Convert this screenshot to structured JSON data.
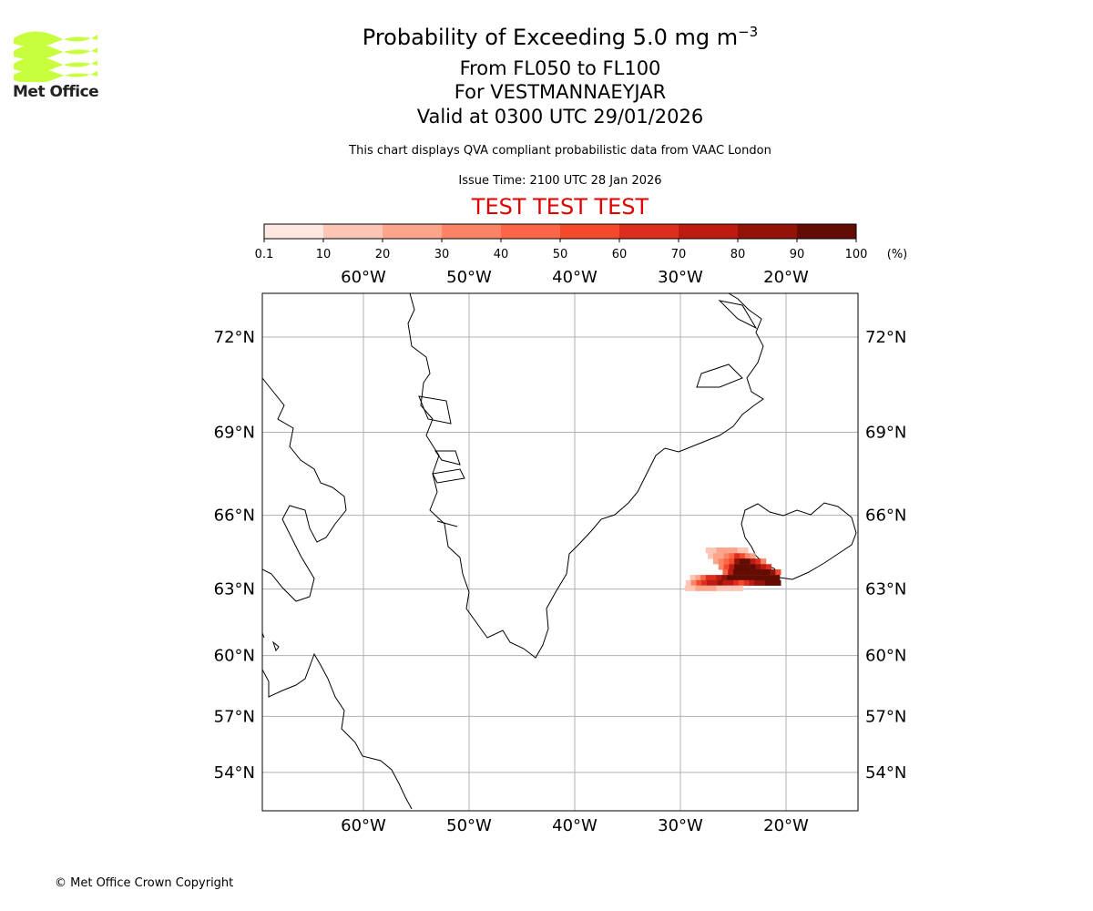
{
  "header": {
    "title": "Probability of Exceeding 5.0 mg m",
    "title_sup": "−3",
    "subtitle_levels": "From FL050 to FL100",
    "subtitle_location": "For VESTMANNAEYJAR",
    "subtitle_valid": "Valid at 0300 UTC 29/01/2026",
    "note": "This chart displays QVA compliant probabilistic data from VAAC London",
    "issue_time": "Issue Time: 2100 UTC 28 Jan 2026",
    "test_banner": "TEST TEST TEST"
  },
  "logo": {
    "text": "Met Office",
    "color": "#c8ff3c"
  },
  "footer": {
    "copyright": "© Met Office Crown Copyright"
  },
  "chart_data": {
    "type": "heatmap",
    "title": "Probability of Exceeding 5.0 mg m-3",
    "colorbar": {
      "ticks": [
        "0.1",
        "10",
        "20",
        "30",
        "40",
        "50",
        "60",
        "70",
        "80",
        "90",
        "100"
      ],
      "unit": "(%)",
      "colors": [
        "#fee8e0",
        "#fcc5b5",
        "#fca58b",
        "#fc8466",
        "#fb6648",
        "#f34a2c",
        "#dc2d1d",
        "#bd1b12",
        "#941309",
        "#620c03"
      ]
    },
    "x_ticks": [
      {
        "lon": -60,
        "label": "60°W"
      },
      {
        "lon": -50,
        "label": "50°W"
      },
      {
        "lon": -40,
        "label": "40°W"
      },
      {
        "lon": -30,
        "label": "30°W"
      },
      {
        "lon": -20,
        "label": "20°W"
      }
    ],
    "y_ticks": [
      {
        "lat": 72,
        "label": "72°N"
      },
      {
        "lat": 69,
        "label": "69°N"
      },
      {
        "lat": 66,
        "label": "66°N"
      },
      {
        "lat": 63,
        "label": "63°N"
      },
      {
        "lat": 60,
        "label": "60°N"
      },
      {
        "lat": 57,
        "label": "57°N"
      },
      {
        "lat": 54,
        "label": "54°N"
      }
    ],
    "extent": {
      "lon": [
        -69.6,
        -13.2
      ],
      "lat": [
        52.6,
        73.5
      ]
    },
    "grid": true,
    "cell": {
      "dlon": 0.5,
      "dlat": 0.225
    },
    "plume_rows": [
      {
        "lat": 64.73,
        "lon_start": -27.6,
        "values": [
          10,
          10,
          20,
          20,
          20,
          20,
          10,
          10
        ]
      },
      {
        "lat": 64.5,
        "lon_start": -27.4,
        "values": [
          10,
          20,
          20,
          30,
          40,
          60,
          50,
          30,
          20
        ]
      },
      {
        "lat": 64.28,
        "lon_start": -26.9,
        "values": [
          20,
          30,
          40,
          50,
          80,
          90,
          90,
          70,
          60,
          30
        ]
      },
      {
        "lat": 64.05,
        "lon_start": -26.4,
        "values": [
          30,
          50,
          70,
          90,
          100,
          100,
          90,
          80,
          70,
          60
        ]
      },
      {
        "lat": 63.83,
        "lon_start": -26.0,
        "values": [
          40,
          70,
          100,
          100,
          100,
          100,
          100,
          100,
          90,
          80,
          50
        ]
      },
      {
        "lat": 63.6,
        "lon_start": -29.1,
        "values": [
          10,
          20,
          40,
          60,
          60,
          70,
          80,
          90,
          100,
          100,
          100,
          100,
          100,
          100,
          100,
          100,
          100
        ]
      },
      {
        "lat": 63.38,
        "lon_start": -29.5,
        "values": [
          10,
          30,
          50,
          60,
          70,
          70,
          80,
          70,
          70,
          60,
          50,
          60,
          70,
          80,
          80,
          90,
          100,
          90
        ]
      },
      {
        "lat": 63.15,
        "lon_start": -29.6,
        "values": [
          10,
          10,
          20,
          20,
          20,
          20,
          10,
          10,
          10,
          10,
          10
        ]
      }
    ]
  }
}
